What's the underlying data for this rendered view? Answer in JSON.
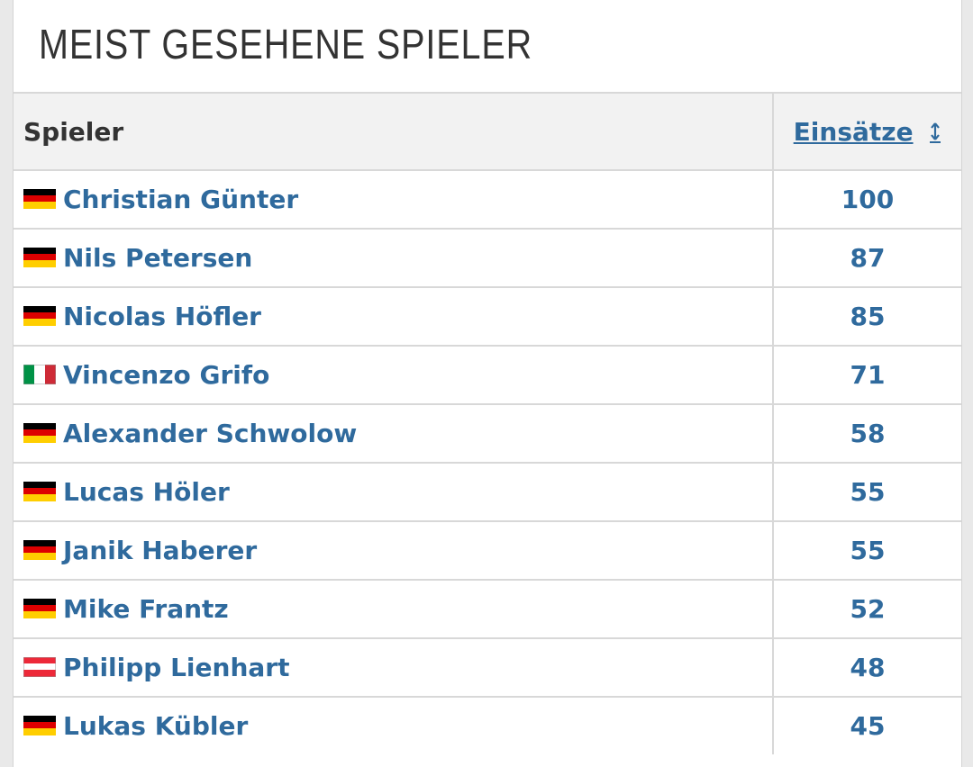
{
  "header": {
    "title": "MEIST GESEHENE SPIELER"
  },
  "table": {
    "columns": [
      "Spieler",
      "Einsätze"
    ],
    "rows": [
      [
        "Christian Günter",
        100
      ],
      [
        "Nils Petersen",
        87
      ],
      [
        "Nicolas Höfler",
        85
      ],
      [
        "Vincenzo Grifo",
        71
      ],
      [
        "Alexander Schwolow",
        58
      ],
      [
        "Lucas Höler",
        55
      ],
      [
        "Janik Haberer",
        55
      ],
      [
        "Mike Frantz",
        52
      ],
      [
        "Philipp Lienhart",
        48
      ],
      [
        "Lukas Kübler",
        45
      ]
    ]
  }
}
